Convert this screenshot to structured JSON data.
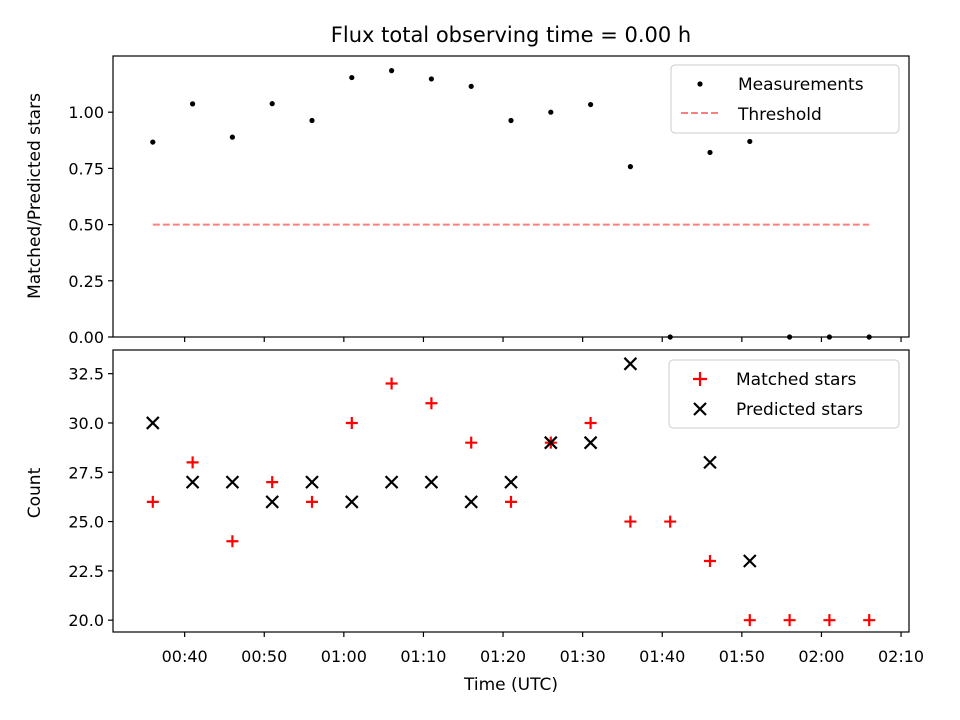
{
  "chart_data": [
    {
      "type": "scatter",
      "title": "Flux total observing time = 0.00 h",
      "xlabel": "",
      "ylabel": "Matched/Predicted stars",
      "ylim": [
        0.0,
        1.25
      ],
      "yticks": [
        "0.00",
        "0.25",
        "0.50",
        "0.75",
        "1.00"
      ],
      "legend_position": "top-right",
      "grid": false,
      "series": [
        {
          "name": "Measurements",
          "style": "dot",
          "color": "#000000",
          "x": [
            "00:36",
            "00:41",
            "00:46",
            "00:51",
            "00:56",
            "01:01",
            "01:06",
            "01:11",
            "01:16",
            "01:21",
            "01:26",
            "01:31",
            "01:36",
            "01:41",
            "01:46",
            "01:51",
            "01:56",
            "02:01",
            "02:06"
          ],
          "y": [
            0.867,
            1.037,
            0.889,
            1.038,
            0.963,
            1.154,
            1.185,
            1.148,
            1.115,
            0.963,
            1.0,
            1.034,
            0.758,
            0.0,
            0.821,
            0.87,
            0.0,
            0.0,
            0.0
          ]
        },
        {
          "name": "Threshold",
          "style": "dashed-line",
          "color": "#ff7f7f",
          "x": [
            "00:36",
            "02:06"
          ],
          "y": [
            0.5,
            0.5
          ]
        }
      ]
    },
    {
      "type": "scatter",
      "title": "",
      "xlabel": "Time (UTC)",
      "ylabel": "Count",
      "ylim": [
        19.4,
        33.7
      ],
      "xlim": [
        "00:31",
        "02:11"
      ],
      "xticks": [
        "00:40",
        "00:50",
        "01:00",
        "01:10",
        "01:20",
        "01:30",
        "01:40",
        "01:50",
        "02:00",
        "02:10"
      ],
      "yticks": [
        "20.0",
        "22.5",
        "25.0",
        "27.5",
        "30.0",
        "32.5"
      ],
      "legend_position": "top-right",
      "grid": false,
      "series": [
        {
          "name": "Matched stars",
          "marker": "plus",
          "color": "#ff0000",
          "x": [
            "00:36",
            "00:41",
            "00:46",
            "00:51",
            "00:56",
            "01:01",
            "01:06",
            "01:11",
            "01:16",
            "01:21",
            "01:26",
            "01:31",
            "01:36",
            "01:41",
            "01:46",
            "01:51",
            "01:56",
            "02:01",
            "02:06"
          ],
          "y": [
            26,
            28,
            24,
            27,
            26,
            30,
            32,
            31,
            29,
            26,
            29,
            30,
            25,
            25,
            23,
            20,
            20,
            20,
            20
          ]
        },
        {
          "name": "Predicted stars",
          "marker": "x",
          "color": "#000000",
          "x": [
            "00:36",
            "00:41",
            "00:46",
            "00:51",
            "00:56",
            "01:01",
            "01:06",
            "01:11",
            "01:16",
            "01:21",
            "01:26",
            "01:31",
            "01:36",
            "01:46",
            "01:51"
          ],
          "y": [
            30,
            27,
            27,
            26,
            27,
            26,
            27,
            27,
            26,
            27,
            29,
            29,
            33,
            28,
            23
          ]
        }
      ]
    }
  ]
}
